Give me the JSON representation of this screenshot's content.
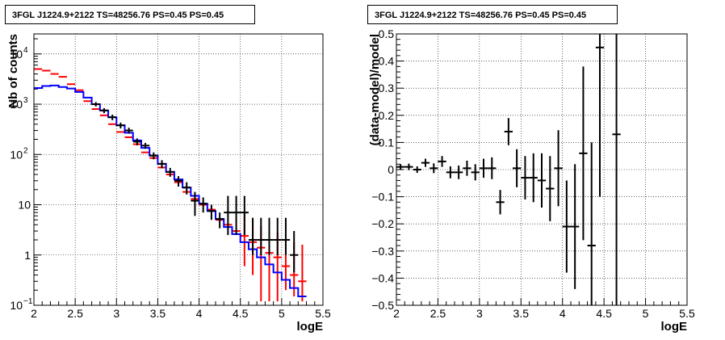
{
  "panels": {
    "left": {
      "title": "3FGL J1224.9+2122 TS=48256.76 PS=0.45 PS=0.45"
    },
    "right": {
      "title": "3FGL J1224.9+2122 TS=48256.76 PS=0.45 PS=0.45"
    }
  },
  "chart_data": [
    {
      "type": "line",
      "title": "3FGL J1224.9+2122 TS=48256.76 PS=0.45 PS=0.45",
      "xlabel": "logE",
      "ylabel": "Nb of counts",
      "xlim": [
        2,
        5.5
      ],
      "ylim": [
        0.1,
        25000
      ],
      "yscale": "log",
      "grid": true,
      "xticks": [
        "2",
        "2.5",
        "3",
        "3.5",
        "4",
        "4.5",
        "5",
        "5.5"
      ],
      "yticks": [
        "10^-1",
        "1",
        "10",
        "10^2",
        "10^3",
        "10^4"
      ],
      "colors": {
        "data": "#000000",
        "model_red": "#ff0000",
        "model_blue": "#0000ff"
      },
      "bin_edges": [
        2.0,
        2.1,
        2.2,
        2.3,
        2.4,
        2.5,
        2.6,
        2.7,
        2.8,
        2.9,
        3.0,
        3.1,
        3.2,
        3.3,
        3.4,
        3.5,
        3.6,
        3.7,
        3.8,
        3.9,
        4.0,
        4.1,
        4.2,
        4.3,
        4.4,
        4.5,
        4.6,
        4.7,
        4.8,
        4.9,
        5.0,
        5.1,
        5.2,
        5.3
      ],
      "series": [
        {
          "x": [
            2.05,
            2.15,
            2.25,
            2.35,
            2.45,
            2.55,
            2.65,
            2.75,
            2.85,
            2.95,
            3.05,
            3.15,
            3.25,
            3.35,
            3.45,
            3.55,
            3.65,
            3.75,
            3.85,
            3.95,
            4.05,
            4.15,
            4.25,
            4.35,
            4.45,
            4.55,
            4.65,
            4.75,
            4.85,
            4.95,
            5.05,
            5.15,
            5.25
          ],
          "values": [
            5000,
            4650,
            4000,
            3500,
            2500,
            1900,
            1150,
            800,
            600,
            400,
            280,
            220,
            160,
            110,
            85,
            55,
            40,
            28,
            18,
            13,
            10,
            8,
            5,
            4,
            3,
            2.4,
            1.8,
            1.4,
            1.1,
            0.9,
            0.6,
            0.4,
            0.3
          ],
          "err_low": [
            null,
            null,
            null,
            null,
            null,
            null,
            null,
            null,
            null,
            null,
            null,
            null,
            null,
            null,
            null,
            null,
            null,
            null,
            null,
            null,
            null,
            null,
            null,
            null,
            null,
            0.6,
            0.4,
            0.12,
            0.12,
            0.12,
            0.2,
            0.15,
            0.12
          ],
          "err_high": [
            null,
            null,
            null,
            null,
            null,
            null,
            null,
            null,
            null,
            null,
            null,
            null,
            null,
            null,
            null,
            null,
            null,
            null,
            null,
            null,
            null,
            null,
            null,
            null,
            null,
            6.5,
            5,
            3.8,
            3.2,
            2.8,
            2.2,
            1.8,
            1.6
          ]
        },
        {
          "x": [
            2.05,
            2.15,
            2.25,
            2.35,
            2.45,
            2.55,
            2.65,
            2.75,
            2.85,
            2.95,
            3.05,
            3.15,
            3.25,
            3.35,
            3.45,
            3.55,
            3.65,
            3.75,
            3.85,
            3.95,
            4.05,
            4.15,
            4.25,
            4.35,
            4.45,
            4.55,
            4.65,
            4.75,
            4.85,
            4.95,
            5.05,
            5.15,
            5.25
          ],
          "values": [
            2100,
            2300,
            2350,
            2200,
            2050,
            1750,
            1350,
            1000,
            750,
            550,
            380,
            270,
            190,
            135,
            95,
            65,
            45,
            32,
            22,
            15,
            10.5,
            7.5,
            5.2,
            3.6,
            2.6,
            1.8,
            1.3,
            0.9,
            0.65,
            0.45,
            0.32,
            0.22,
            0.15
          ]
        },
        {
          "x": [
            2.05,
            2.15,
            2.25,
            2.35,
            2.45,
            2.55,
            2.65,
            2.75,
            2.85,
            2.95,
            3.05,
            3.15,
            3.25,
            3.35,
            3.45,
            3.55,
            3.65,
            3.75,
            3.85,
            3.95,
            4.05,
            4.15,
            4.25,
            4.35,
            4.45,
            4.55,
            4.65,
            4.75,
            4.85,
            4.95,
            5.05,
            5.15
          ],
          "values": [
            null,
            null,
            null,
            null,
            null,
            null,
            null,
            1000,
            750,
            550,
            380,
            300,
            180,
            150,
            95,
            65,
            45,
            30,
            22,
            12,
            10.5,
            7.5,
            5.2,
            7,
            7,
            7,
            2,
            2,
            2,
            2,
            2,
            1
          ],
          "err_low": [
            null,
            null,
            null,
            null,
            null,
            null,
            null,
            100,
            85,
            70,
            50,
            40,
            28,
            20,
            15,
            12,
            9,
            7,
            6,
            6,
            3.5,
            2.5,
            1.8,
            4.5,
            4.5,
            4.5,
            1.0,
            1.0,
            1.0,
            1.0,
            1.0,
            0.55
          ],
          "err_high": [
            null,
            null,
            null,
            null,
            null,
            null,
            null,
            100,
            85,
            70,
            50,
            40,
            28,
            20,
            15,
            12,
            9,
            7,
            6,
            6,
            3.5,
            2.5,
            1.8,
            8,
            8,
            8,
            3.5,
            3.5,
            3.5,
            3.5,
            3.5,
            2
          ]
        }
      ]
    },
    {
      "type": "scatter",
      "title": "3FGL J1224.9+2122 TS=48256.76 PS=0.45 PS=0.45",
      "xlabel": "logE",
      "ylabel": "(data-model)/model",
      "xlim": [
        2,
        5.5
      ],
      "ylim": [
        -0.5,
        0.5
      ],
      "grid": true,
      "xticks": [
        "2",
        "2.5",
        "3",
        "3.5",
        "4",
        "4.5",
        "5",
        "5.5"
      ],
      "yticks": [
        "−0.5",
        "−0.4",
        "−0.3",
        "−0.2",
        "−0.1",
        "0",
        "0.1",
        "0.2",
        "0.3",
        "0.4",
        "0.5"
      ],
      "series": [
        {
          "x": [
            2.05,
            2.15,
            2.25,
            2.35,
            2.45,
            2.55,
            2.65,
            2.75,
            2.85,
            2.95,
            3.05,
            3.15,
            3.25,
            3.35,
            3.45,
            3.55,
            3.65,
            3.75,
            3.85,
            3.95,
            4.05,
            4.15,
            4.25,
            4.35,
            4.45,
            4.65
          ],
          "values": [
            0.01,
            0.01,
            0.0,
            0.025,
            0.005,
            0.03,
            -0.01,
            -0.01,
            0.005,
            -0.01,
            0.005,
            0.005,
            -0.12,
            0.14,
            0.005,
            -0.03,
            -0.03,
            -0.04,
            -0.07,
            0.005,
            -0.21,
            -0.21,
            0.06,
            -0.28,
            0.45,
            0.13
          ],
          "err": [
            0.01,
            0.012,
            0.012,
            0.015,
            0.018,
            0.02,
            0.022,
            0.025,
            0.028,
            0.03,
            0.035,
            0.04,
            0.045,
            0.05,
            0.07,
            0.08,
            0.09,
            0.1,
            0.12,
            0.14,
            0.17,
            0.23,
            0.32,
            0.38,
            0.55,
            0.8
          ]
        }
      ]
    }
  ]
}
